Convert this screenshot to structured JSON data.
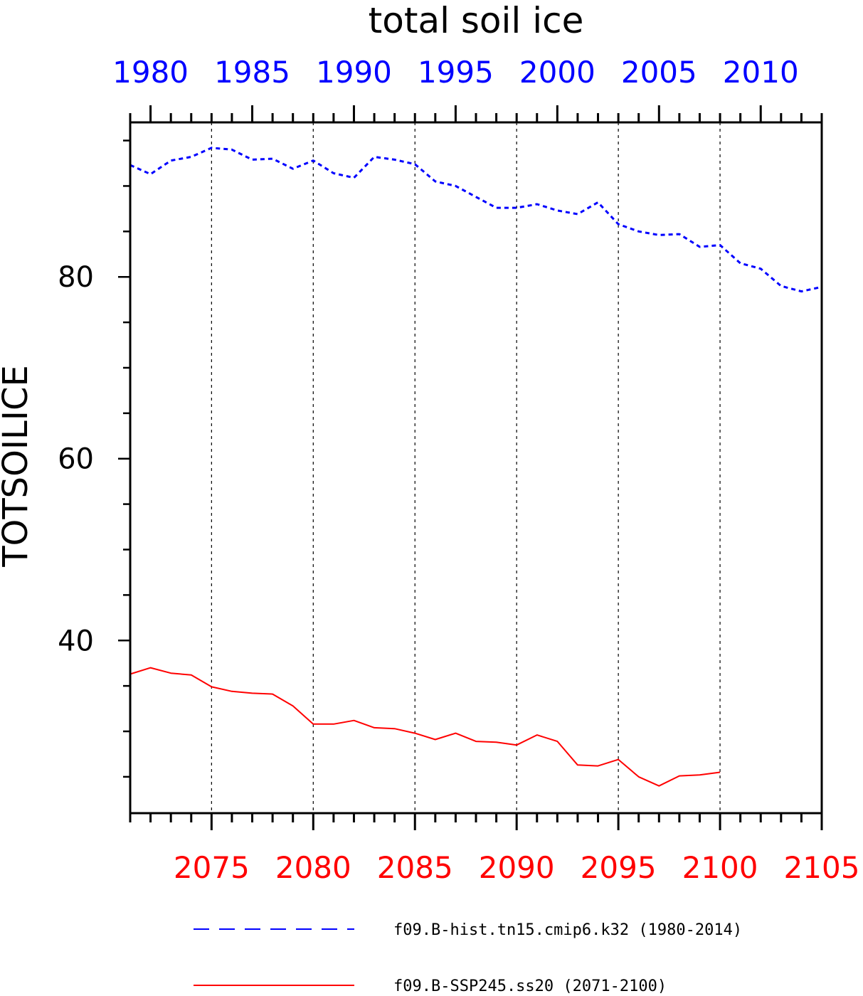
{
  "chart_data": {
    "type": "line",
    "title": "total soil ice",
    "ylabel": "TOTSOILICE",
    "ylim": [
      21,
      97
    ],
    "y_ticks": [
      40,
      60,
      80
    ],
    "grid": "vertical dashed lines at labeled x ticks",
    "legend_position": "bottom",
    "top_axis": {
      "color": "#0000ff",
      "range": [
        1979,
        2013
      ],
      "tick_labels": [
        "1980",
        "1985",
        "1990",
        "1995",
        "2000",
        "2005",
        "2010"
      ],
      "tick_values": [
        1980,
        1985,
        1990,
        1995,
        2000,
        2005,
        2010
      ]
    },
    "bottom_axis": {
      "color": "#ff0000",
      "range": [
        2071,
        2105
      ],
      "tick_labels": [
        "2075",
        "2080",
        "2085",
        "2090",
        "2095",
        "2100",
        "2105"
      ],
      "tick_values": [
        2075,
        2080,
        2085,
        2090,
        2095,
        2100,
        2105
      ]
    },
    "series": [
      {
        "name": "f09.B-hist.tn15.cmip6.k32 (1980-2014)",
        "color": "#0000ff",
        "style": "dashed",
        "axis": "top",
        "x": [
          1979,
          1980,
          1981,
          1982,
          1983,
          1984,
          1985,
          1986,
          1987,
          1988,
          1989,
          1990,
          1991,
          1992,
          1993,
          1994,
          1995,
          1996,
          1997,
          1998,
          1999,
          2000,
          2001,
          2002,
          2003,
          2004,
          2005,
          2006,
          2007,
          2008,
          2009,
          2010,
          2011,
          2012,
          2013
        ],
        "values": [
          92.3,
          91.3,
          92.8,
          93.2,
          94.2,
          94.0,
          92.9,
          93.0,
          91.9,
          92.8,
          91.4,
          90.9,
          93.2,
          92.9,
          92.4,
          90.5,
          90.0,
          88.8,
          87.6,
          87.6,
          88.0,
          87.3,
          86.9,
          88.2,
          85.8,
          85.0,
          84.6,
          84.7,
          83.3,
          83.5,
          81.5,
          80.9,
          79.0,
          78.4,
          78.9
        ]
      },
      {
        "name": "f09.B-SSP245.ss20 (2071-2100)",
        "color": "#ff0000",
        "style": "solid",
        "axis": "bottom",
        "x": [
          2071,
          2072,
          2073,
          2074,
          2075,
          2076,
          2077,
          2078,
          2079,
          2080,
          2081,
          2082,
          2083,
          2084,
          2085,
          2086,
          2087,
          2088,
          2089,
          2090,
          2091,
          2092,
          2093,
          2094,
          2095,
          2096,
          2097,
          2098,
          2099,
          2100
        ],
        "values": [
          36.3,
          37.0,
          36.4,
          36.2,
          34.9,
          34.4,
          34.2,
          34.1,
          32.8,
          30.8,
          30.8,
          31.2,
          30.4,
          30.3,
          29.8,
          29.1,
          29.8,
          28.9,
          28.8,
          28.5,
          29.6,
          28.9,
          26.3,
          26.2,
          26.9,
          25.0,
          24.0,
          25.1,
          25.2,
          25.5
        ]
      }
    ]
  }
}
